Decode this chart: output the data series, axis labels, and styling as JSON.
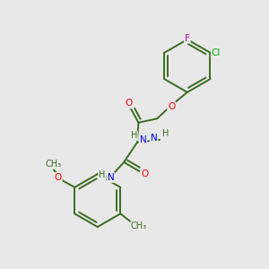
{
  "background_color": "#e8e8e8",
  "bond_color": "#3a6b20",
  "atom_colors": {
    "O": "#ff0000",
    "N": "#0000ee",
    "Cl": "#00aa00",
    "F": "#cc00cc",
    "C": "#3a6b20",
    "H": "#3a6b20"
  },
  "figsize": [
    3.0,
    3.0
  ],
  "dpi": 100
}
